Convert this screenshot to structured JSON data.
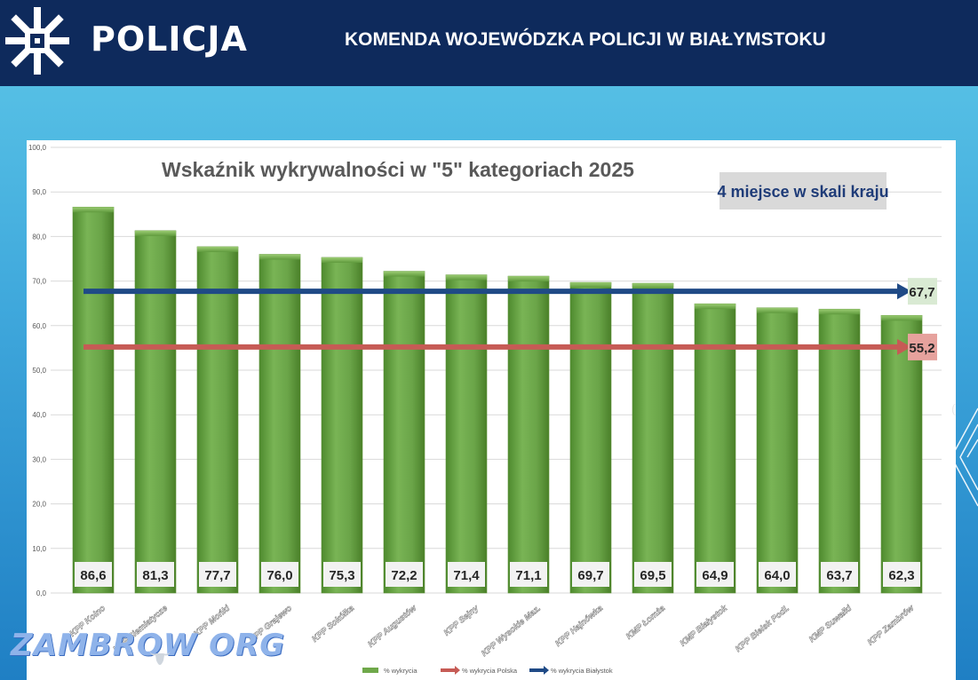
{
  "header": {
    "brand": "POLICJA",
    "title": "KOMENDA WOJEWÓDZKA POLICJI W BIAŁYMSTOKU"
  },
  "watermark": {
    "text": "ZAMBROW ORG",
    "stray_char": "("
  },
  "colors": {
    "header_bg": "#0e2a5c",
    "bar_green": "#6fa84a",
    "blue_line": "#1f4a86",
    "red_line": "#c65b55",
    "badge_blue_bg": "#d9ead3",
    "badge_red_bg": "#e6a29d"
  },
  "chart_data": {
    "type": "bar",
    "title": "Wskaźnik wykrywalności w \"5\" kategoriach 2025",
    "annotation": "4 miejsce w skali kraju",
    "categories": [
      "KPP Kolno",
      "KPP Siemiatycze",
      "KPP Mońki",
      "KPP Grajewo",
      "KPP Sokółka",
      "KPP Augustów",
      "KPP Sejny",
      "KPP Wysokie Maz.",
      "KPP Hajnówka",
      "KMP Łomża",
      "KMP Białystok",
      "KPP Bielsk Podl.",
      "KMP Suwałki",
      "KPP Zambrów"
    ],
    "series": [
      {
        "name": "% wykrycia",
        "type": "bar",
        "color": "#6fa84a",
        "values": [
          86.6,
          81.3,
          77.7,
          76.0,
          75.3,
          72.2,
          71.4,
          71.1,
          69.7,
          69.5,
          64.9,
          64.0,
          63.7,
          62.3
        ]
      },
      {
        "name": "% wykrycia Polska",
        "type": "line",
        "color": "#c65b55",
        "value": 55.2
      },
      {
        "name": "% wykrycia Białystok",
        "type": "line",
        "color": "#1f4a86",
        "value": 67.7
      }
    ],
    "value_labels": [
      "86,6",
      "81,3",
      "77,7",
      "76,0",
      "75,3",
      "72,2",
      "71,4",
      "71,1",
      "69,7",
      "69,5",
      "64,9",
      "64,0",
      "63,7",
      "62,3"
    ],
    "line_labels": {
      "Białystok": "67,7",
      "Polska": "55,2"
    },
    "yticks": [
      "0,0",
      "10,0",
      "20,0",
      "30,0",
      "40,0",
      "50,0",
      "60,0",
      "70,0",
      "80,0",
      "90,0",
      "100,0"
    ],
    "ylim": [
      0,
      100
    ],
    "grid": true,
    "legend": "bottom",
    "xlabel": "",
    "ylabel": ""
  }
}
